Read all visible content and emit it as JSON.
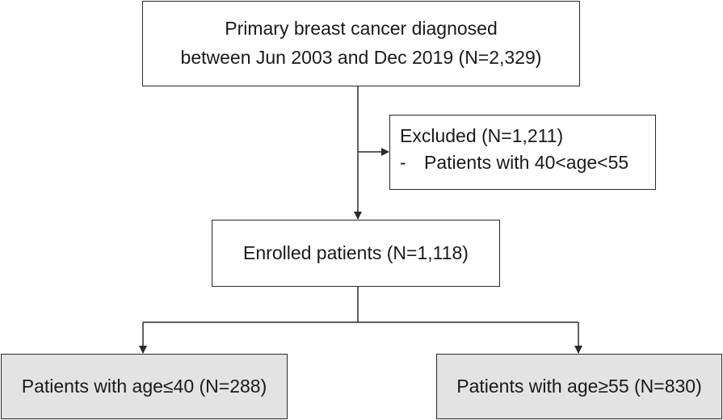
{
  "diagram": {
    "source_box": {
      "line1": "Primary breast cancer diagnosed",
      "line2": "between Jun 2003 and Dec 2019 (N=2,329)"
    },
    "excluded_box": {
      "title": "Excluded (N=1,211)",
      "bullet": "-",
      "item": "Patients with 40<age<55"
    },
    "enrolled_box": {
      "label": "Enrolled patients (N=1,118)"
    },
    "left_group": {
      "label": "Patients with age≤40 (N=288)"
    },
    "right_group": {
      "label": "Patients with age≥55 (N=830)"
    },
    "colors": {
      "line": "#2a2a2a",
      "shaded_fill": "#e3e3e3",
      "box_fill": "#ffffff"
    }
  }
}
